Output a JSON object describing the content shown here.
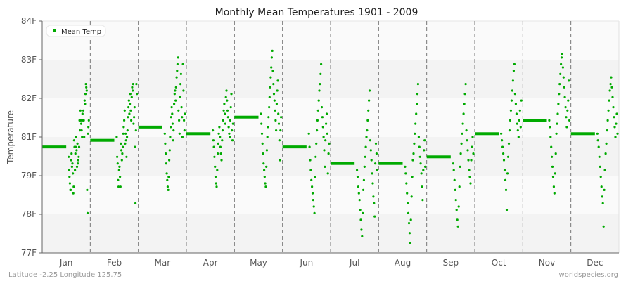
{
  "chart_data": {
    "type": "scatter",
    "title": "Monthly Mean Temperatures 1901 - 2009",
    "xlabel": "",
    "ylabel": "Temperature",
    "y_ticks": [
      "84F",
      "83F",
      "82F",
      "81F",
      "79F",
      "78F",
      "77F"
    ],
    "ylim": [
      77,
      84
    ],
    "categories": [
      "Jan",
      "Feb",
      "Mar",
      "Apr",
      "May",
      "Jun",
      "Jul",
      "Aug",
      "Sep",
      "Oct",
      "Nov",
      "Dec"
    ],
    "grid": {
      "horizontal_bands": true,
      "vertical_dashed_separators": true
    },
    "legend": {
      "position": "top-left",
      "entries": [
        "Mean Temp"
      ]
    },
    "series": [
      {
        "name": "Mean Temp",
        "color": "#00aa00",
        "monthly_mean": [
          80.2,
          80.4,
          80.8,
          80.6,
          81.1,
          80.2,
          79.7,
          79.7,
          79.9,
          80.6,
          81.0,
          80.6
        ],
        "yearly_points": {
          "Jan": [
            79.9,
            79.5,
            79.3,
            79.1,
            78.9,
            78.9,
            79.8,
            80.0,
            79.6,
            79.7,
            79.4,
            78.8,
            79.0,
            80.4,
            80.2,
            79.5,
            80.0,
            80.2,
            80.5,
            80.1,
            79.6,
            80.3,
            79.7,
            79.8,
            79.9,
            80.2,
            81.0,
            80.7,
            81.3,
            81.0,
            80.9,
            80.7,
            80.5,
            81.2,
            81.0,
            81.3,
            81.0,
            80.5,
            81.6,
            81.5,
            81.8,
            82.1,
            82.0,
            81.9,
            78.9,
            78.2,
            80.6,
            80.8,
            81.0
          ],
          "Feb": [
            80.5,
            79.9,
            79.7,
            79.2,
            79.0,
            79.5,
            79.6,
            79.3,
            79.0,
            80.3,
            80.1,
            79.8,
            80.0,
            80.2,
            80.6,
            80.8,
            81.0,
            81.3,
            80.3,
            80.6,
            80.4,
            79.9,
            80.5,
            80.7,
            81.1,
            81.4,
            81.6,
            81.2,
            81.5,
            81.8,
            81.3,
            81.0,
            81.7,
            82.0,
            81.9,
            82.1,
            80.9,
            81.1,
            81.4,
            80.2,
            78.5,
            80.7,
            82.1,
            81.8
          ],
          "Mar": [
            80.6,
            80.3,
            80.0,
            79.7,
            79.4,
            79.2,
            79.0,
            78.9,
            79.3,
            79.8,
            80.1,
            80.5,
            80.8,
            81.1,
            81.4,
            81.2,
            80.9,
            80.4,
            80.7,
            81.5,
            81.8,
            81.9,
            81.6,
            82.0,
            82.3,
            82.5,
            82.7,
            82.9,
            81.3,
            81.0,
            80.6,
            81.7,
            82.1,
            82.4,
            81.4,
            81.1,
            80.5,
            82.7,
            81.9,
            81.0,
            80.7,
            81.2
          ],
          "Apr": [
            80.7,
            80.4,
            80.2,
            79.9,
            79.6,
            79.3,
            79.1,
            79.0,
            79.5,
            80.0,
            80.3,
            80.6,
            80.8,
            80.5,
            80.2,
            80.0,
            79.8,
            80.4,
            80.7,
            81.0,
            81.3,
            81.5,
            81.2,
            80.9,
            81.7,
            81.9,
            81.6,
            81.3,
            81.1,
            80.8,
            80.6,
            80.5,
            81.0,
            81.4,
            81.8,
            80.7,
            80.4,
            80.9
          ],
          "May": [
            81.2,
            80.9,
            80.6,
            80.3,
            80.0,
            79.7,
            79.5,
            79.3,
            79.1,
            79.0,
            79.6,
            80.1,
            80.5,
            80.8,
            81.1,
            81.4,
            81.7,
            82.0,
            82.3,
            82.6,
            82.9,
            83.1,
            82.5,
            82.1,
            81.8,
            81.6,
            81.3,
            81.0,
            80.7,
            81.5,
            81.9,
            82.2,
            81.2,
            80.9,
            80.4,
            79.8,
            80.7,
            81.1
          ],
          "Jun": [
            80.6,
            80.2,
            79.8,
            79.5,
            79.2,
            79.0,
            78.8,
            78.6,
            78.4,
            78.2,
            79.3,
            79.9,
            80.3,
            80.7,
            81.0,
            81.3,
            81.6,
            81.9,
            82.1,
            82.4,
            82.7,
            81.4,
            81.1,
            80.8,
            80.5,
            80.1,
            79.6,
            80.4,
            80.9,
            81.2,
            80.6,
            79.4,
            80.0,
            80.3
          ],
          "Jul": [
            79.5,
            79.3,
            79.0,
            78.8,
            78.6,
            78.3,
            78.0,
            77.7,
            77.5,
            78.2,
            78.9,
            79.2,
            79.6,
            79.9,
            80.2,
            80.5,
            80.7,
            81.0,
            81.3,
            81.6,
            81.9,
            80.4,
            80.1,
            79.8,
            79.4,
            79.1,
            78.7,
            78.5,
            78.1,
            79.7,
            80.3,
            80.0,
            79.5
          ],
          "Aug": [
            79.6,
            79.4,
            79.1,
            78.8,
            78.5,
            78.2,
            77.9,
            77.6,
            77.3,
            78.0,
            78.7,
            79.3,
            79.8,
            80.0,
            80.3,
            80.6,
            80.9,
            81.2,
            81.5,
            81.8,
            82.1,
            80.5,
            80.2,
            79.9,
            79.7,
            79.4,
            79.0,
            78.6,
            79.5,
            80.1,
            80.4,
            79.6
          ],
          "Sep": [
            79.7,
            79.5,
            79.2,
            78.9,
            78.6,
            78.3,
            78.0,
            77.8,
            78.4,
            79.0,
            79.6,
            80.0,
            80.3,
            80.6,
            80.9,
            81.2,
            81.5,
            81.8,
            82.1,
            80.7,
            80.4,
            80.1,
            79.8,
            79.5,
            79.3,
            79.1,
            79.8,
            80.2,
            80.5,
            80.0
          ],
          "Oct": [
            80.6,
            80.4,
            80.2,
            80.0,
            79.8,
            79.5,
            79.2,
            78.9,
            78.3,
            79.4,
            79.9,
            80.3,
            80.7,
            81.0,
            81.3,
            81.6,
            81.9,
            82.2,
            82.5,
            82.7,
            81.8,
            81.5,
            81.2,
            80.9,
            80.7,
            80.5,
            81.0,
            81.3,
            80.8,
            81.6
          ],
          "Nov": [
            81.0,
            80.8,
            80.5,
            80.2,
            79.9,
            79.6,
            79.3,
            79.0,
            78.8,
            79.4,
            80.0,
            80.6,
            80.9,
            81.2,
            81.5,
            81.8,
            82.1,
            82.4,
            82.7,
            82.9,
            83.0,
            82.6,
            82.3,
            82.0,
            81.7,
            81.4,
            81.1,
            80.8,
            81.3,
            81.6,
            82.2,
            81.0
          ],
          "Dec": [
            80.6,
            80.4,
            80.2,
            79.9,
            79.6,
            79.3,
            79.0,
            78.7,
            78.5,
            77.8,
            78.9,
            79.5,
            80.0,
            80.3,
            80.7,
            81.0,
            81.3,
            81.6,
            81.9,
            82.1,
            82.3,
            82.0,
            81.7,
            81.4,
            81.1,
            80.8,
            80.5,
            80.9,
            81.2,
            80.6
          ]
        }
      }
    ]
  },
  "header": {
    "title": "Monthly Mean Temperatures 1901 - 2009"
  },
  "axis": {
    "y_label": "Temperature"
  },
  "legend": {
    "label": "Mean Temp",
    "color": "#00aa00"
  },
  "footer": {
    "left": "Latitude -2.25 Longitude 125.75",
    "right": "worldspecies.org"
  },
  "colors": {
    "point": "#00aa00",
    "band_light": "#fafafa",
    "band_dark": "#f3f3f3",
    "separator": "#777777",
    "axis": "#666666"
  }
}
